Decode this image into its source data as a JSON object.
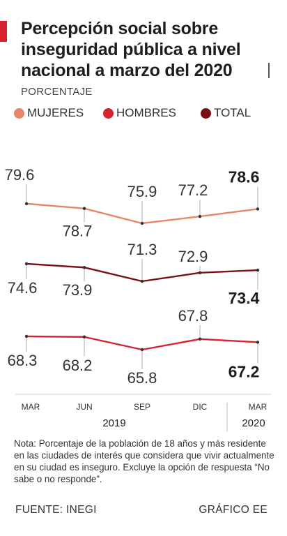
{
  "title": "Percepción social sobre inseguridad pública a nivel nacional a marzo del 2020",
  "unit_label": "PORCENTAJE",
  "legend": [
    {
      "label": "MUJERES",
      "color": "#e8866a"
    },
    {
      "label": "HOMBRES",
      "color": "#d7232f"
    },
    {
      "label": "TOTAL",
      "color": "#7a0f16"
    }
  ],
  "chart_data": {
    "type": "line",
    "categories": [
      "MAR",
      "JUN",
      "SEP",
      "DIC",
      "MAR"
    ],
    "year_labels": [
      "2019",
      "2020"
    ],
    "series": [
      {
        "name": "MUJERES",
        "color": "#e8866a",
        "values": [
          79.6,
          78.7,
          75.9,
          77.2,
          78.6
        ]
      },
      {
        "name": "TOTAL",
        "color": "#7a0f16",
        "values": [
          74.6,
          73.9,
          71.3,
          72.9,
          73.4
        ]
      },
      {
        "name": "HOMBRES",
        "color": "#d7232f",
        "values": [
          68.3,
          68.2,
          65.8,
          67.8,
          67.2
        ]
      }
    ],
    "value_labels": [
      [
        "79.6",
        "78.7",
        "75.9",
        "77.2",
        "78.6"
      ],
      [
        "74.6",
        "73.9",
        "71.3",
        "72.9",
        "73.4"
      ],
      [
        "68.3",
        "68.2",
        "65.8",
        "67.8",
        "67.2"
      ]
    ]
  },
  "note": "Nota: Porcentaje de la población de 18 años y más residente en las ciudades de interés que considera que vivir actualmente en su ciudad es inseguro. Excluye la opción de respuesta “No sabe o no responde”.",
  "source": "FUENTE: INEGI",
  "credit": "GRÁFICO EE"
}
